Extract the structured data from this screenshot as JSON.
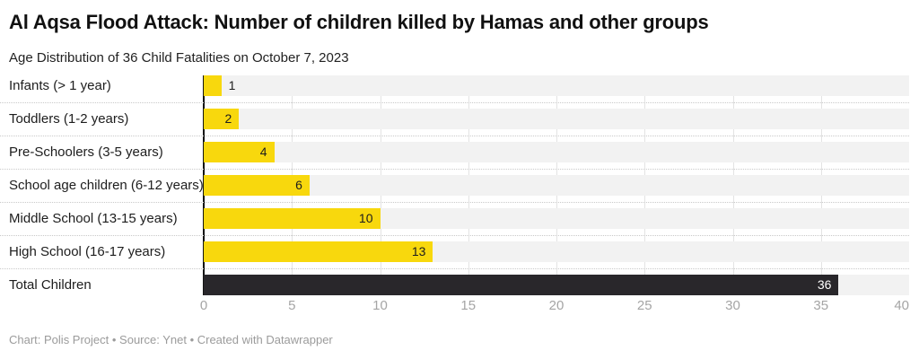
{
  "header": {
    "title": "Al Aqsa Flood Attack: Number of children killed by Hamas and other groups",
    "subtitle": "Age Distribution of 36 Child Fatalities on October 7, 2023"
  },
  "chart_data": {
    "type": "bar",
    "orientation": "horizontal",
    "title": "Al Aqsa Flood Attack: Number of children killed by Hamas and other groups",
    "subtitle": "Age Distribution of 36 Child Fatalities on October 7, 2023",
    "categories": [
      "Infants (> 1 year)",
      "Toddlers (1-2 years)",
      "Pre-Schoolers (3-5 years)",
      "School age children (6-12 years)",
      "Middle School (13-15 years)",
      "High School (16-17 years)",
      "Total Children"
    ],
    "values": [
      1,
      2,
      4,
      6,
      10,
      13,
      36
    ],
    "value_labels": [
      "1",
      "2",
      "4",
      "6",
      "10",
      "13",
      "36"
    ],
    "bar_colors": [
      "#f8d80d",
      "#f8d80d",
      "#f8d80d",
      "#f8d80d",
      "#f8d80d",
      "#f8d80d",
      "#29272b"
    ],
    "value_label_colors": [
      "#1d1d1d",
      "#1d1d1d",
      "#1d1d1d",
      "#1d1d1d",
      "#1d1d1d",
      "#1d1d1d",
      "#ffffff"
    ],
    "xlabel": "",
    "ylabel": "",
    "xlim": [
      0,
      40
    ],
    "x_ticks": [
      0,
      5,
      10,
      15,
      20,
      25,
      30,
      35,
      40
    ],
    "grid": "vertical",
    "row_band_color": "#f2f2f2",
    "gridline_color": "#e3e3e3",
    "axis_line_color": "#141414",
    "tick_label_color": "#a5a5a5"
  },
  "footer": {
    "text": "Chart: Polis Project • Source: Ynet • Created with Datawrapper"
  }
}
